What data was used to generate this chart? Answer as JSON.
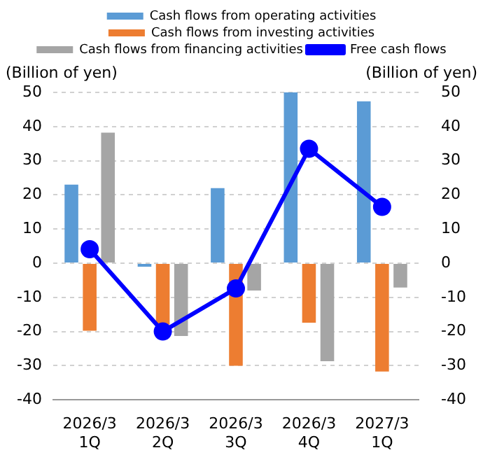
{
  "chart_data": {
    "type": "bar",
    "categories": [
      "2026/3\n1Q",
      "2026/3\n2Q",
      "2026/3\n3Q",
      "2026/3\n4Q",
      "2027/3\n1Q"
    ],
    "series": [
      {
        "name": "Cash flows from operating activities",
        "color": "#5b9bd5",
        "values": [
          23,
          -1,
          22,
          50,
          47.4
        ]
      },
      {
        "name": "Cash flows from investing activities",
        "color": "#ed7d31",
        "values": [
          -19.8,
          -18,
          -30,
          -17.4,
          -31.7
        ]
      },
      {
        "name": "Cash flows from financing activities",
        "color": "#a5a5a5",
        "values": [
          38.2,
          -21.3,
          -8,
          -28.7,
          -7.1
        ]
      },
      {
        "name": "Free cash flows",
        "type": "line",
        "color": "#0000ff",
        "values": [
          4.1,
          -20,
          -7.4,
          33.5,
          16.5
        ]
      }
    ],
    "ylabel": "(Billion of yen)",
    "y2label": "(Billion of yen)",
    "ylim": [
      -40,
      50
    ],
    "yticks": [
      -40,
      -30,
      -20,
      -10,
      0,
      10,
      20,
      30,
      40,
      50
    ],
    "y2lim": [
      -40,
      50
    ],
    "y2ticks": [
      -40,
      -30,
      -20,
      -10,
      0,
      10,
      20,
      30,
      40,
      50
    ],
    "grid": "y",
    "legend": "top",
    "marker": "circle",
    "line_style": "solid"
  }
}
